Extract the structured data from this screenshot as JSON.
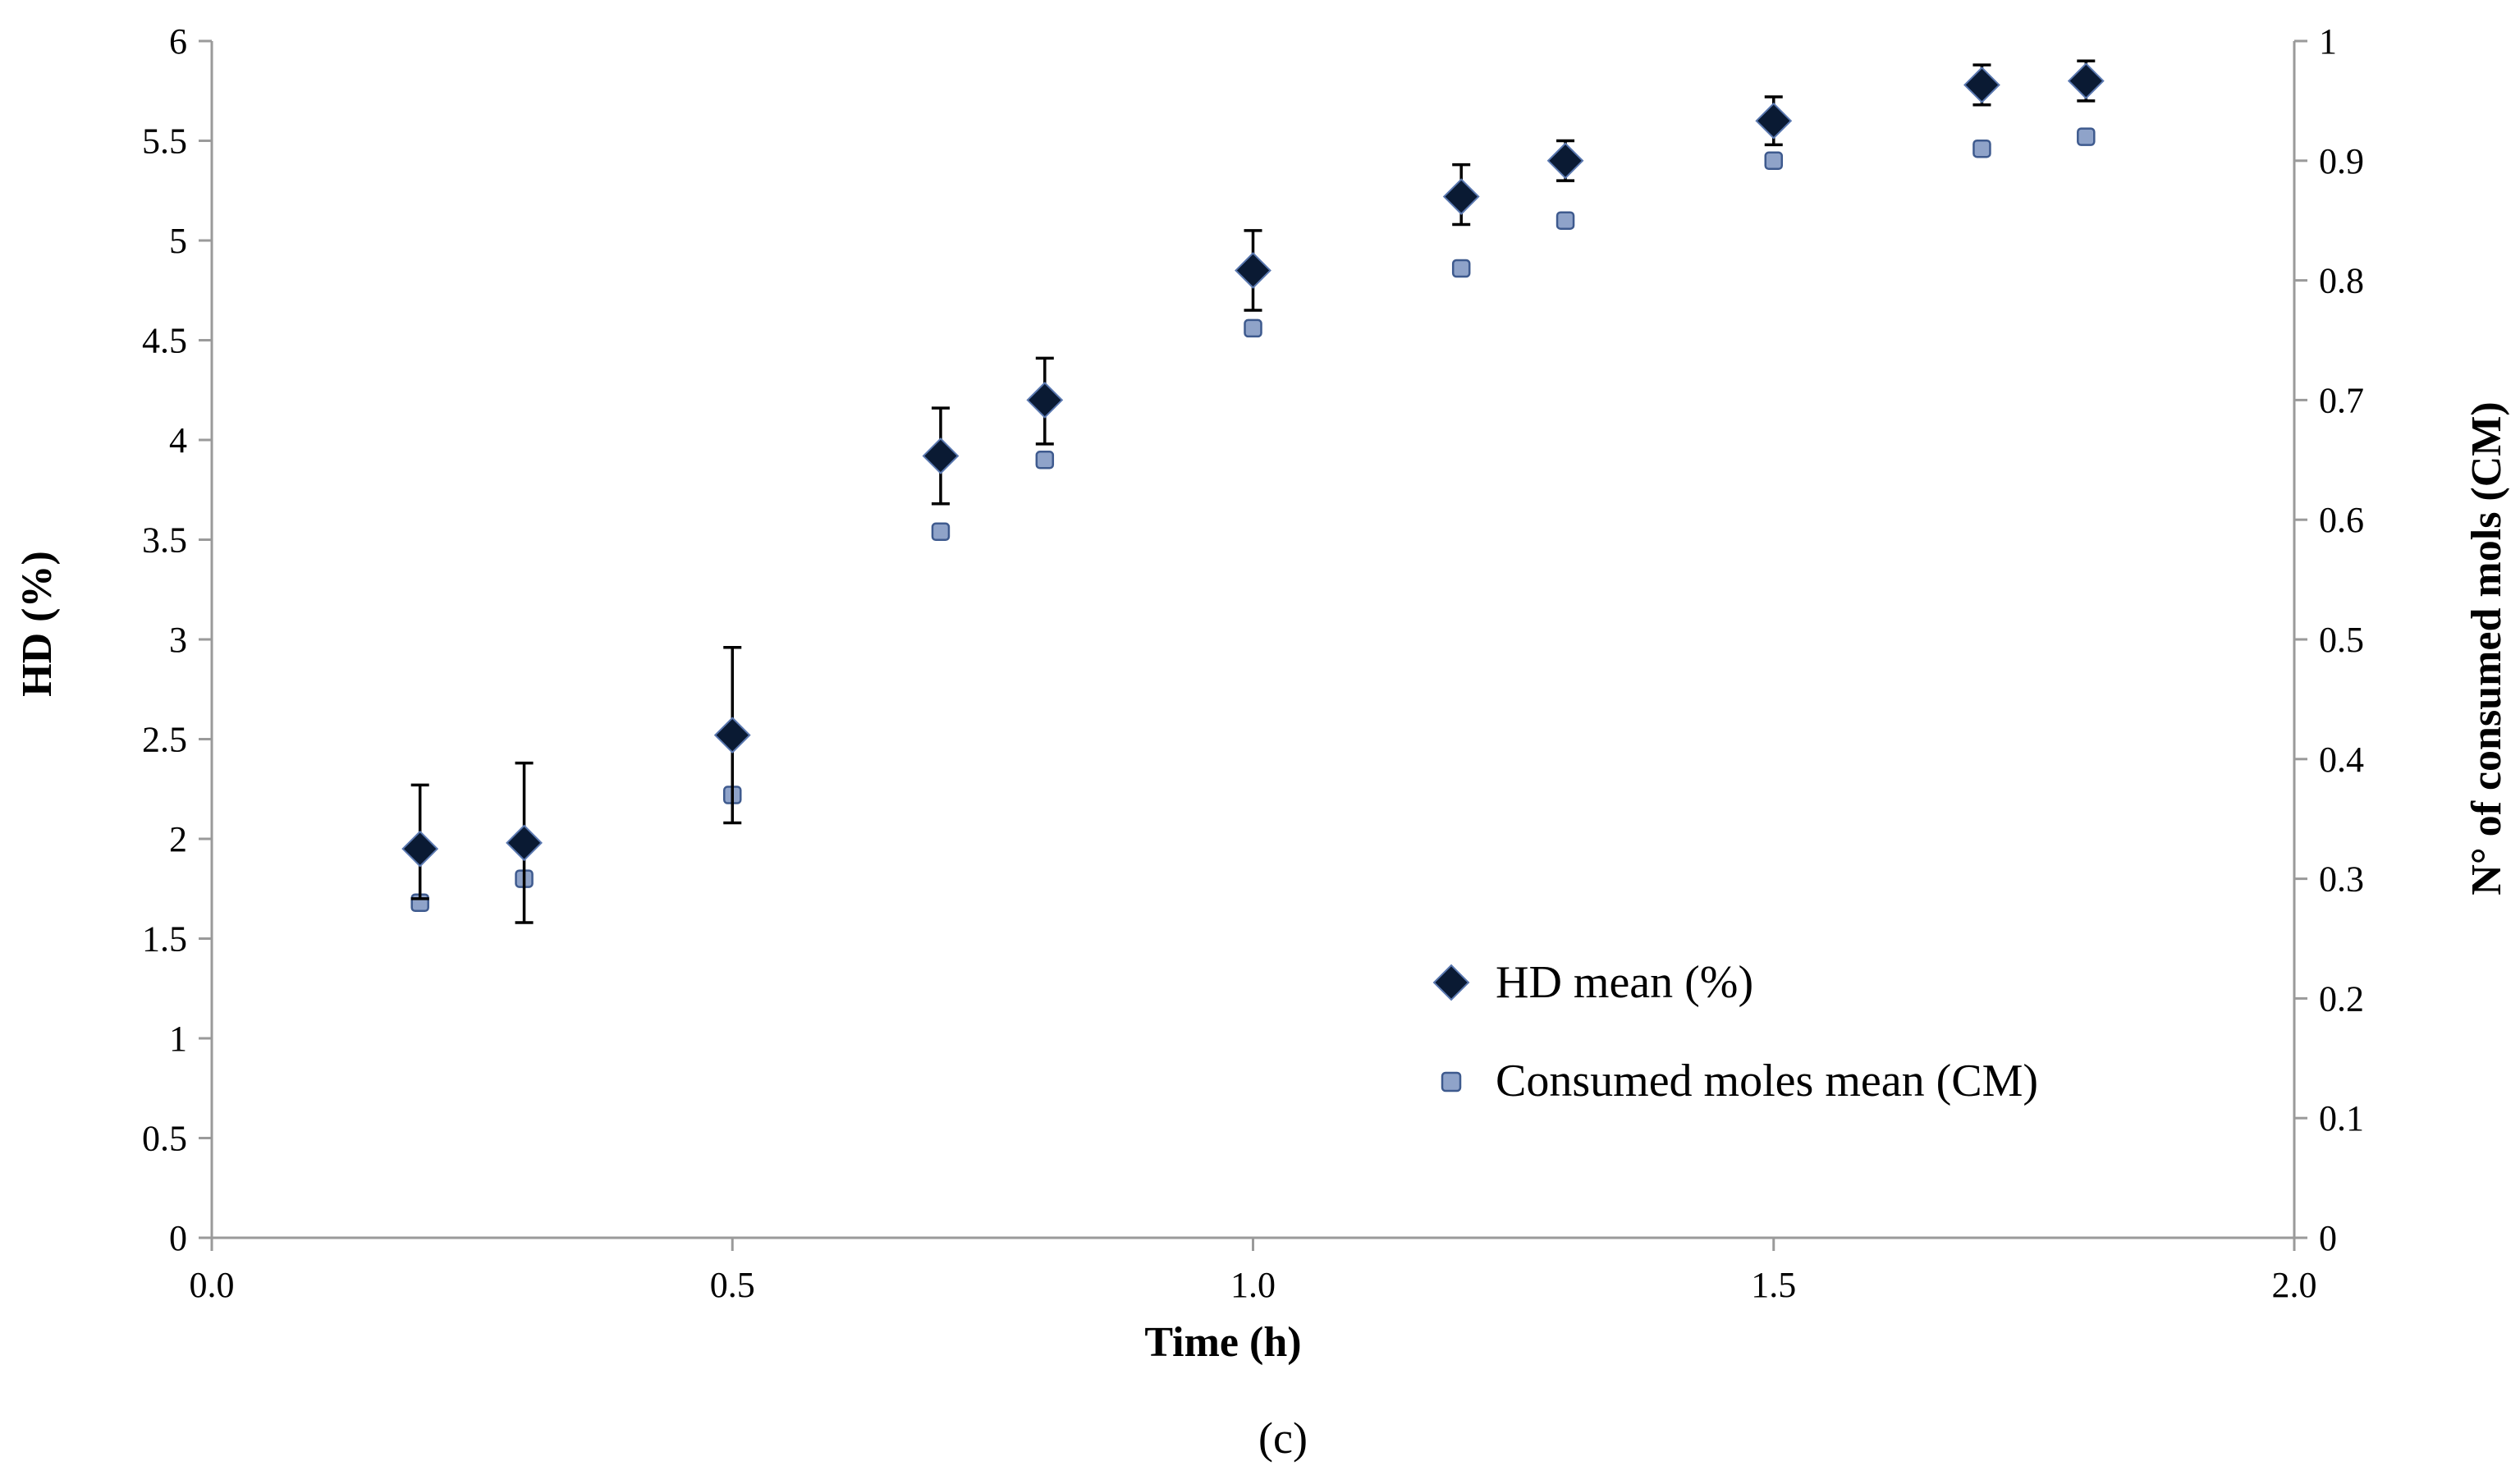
{
  "chart_data": {
    "type": "scatter",
    "title": "",
    "xlabel": "Time (h)",
    "ylabel_left": "HD (%)",
    "ylabel_right": "N° of consumed mols (CM)",
    "caption": "(c)",
    "xlim": [
      0.0,
      2.0
    ],
    "ylim_left": [
      0,
      6
    ],
    "ylim_right": [
      0,
      1
    ],
    "x_ticks": [
      "0.0",
      "0.5",
      "1.0",
      "1.5",
      "2.0"
    ],
    "y_left_ticks": [
      "0",
      "0.5",
      "1",
      "1.5",
      "2",
      "2.5",
      "3",
      "3.5",
      "4",
      "4.5",
      "5",
      "5.5",
      "6"
    ],
    "y_right_ticks": [
      "0",
      "0.1",
      "0.2",
      "0.3",
      "0.4",
      "0.5",
      "0.6",
      "0.7",
      "0.8",
      "0.9",
      "1"
    ],
    "legend_position": "bottom-right",
    "colors": {
      "hd": "#0a1a33",
      "cm_fill": "#8fa3c9",
      "cm_stroke": "#3e5a8e",
      "axis": "#9a9a9a"
    },
    "series": [
      {
        "name": "HD mean (%)",
        "axis": "left",
        "marker": "diamond",
        "x": [
          0.2,
          0.3,
          0.5,
          0.7,
          0.8,
          1.0,
          1.2,
          1.3,
          1.5,
          1.7,
          1.8
        ],
        "y": [
          1.95,
          1.98,
          2.52,
          3.92,
          4.2,
          4.85,
          5.22,
          5.4,
          5.6,
          5.78,
          5.8
        ],
        "err_low": [
          1.7,
          1.58,
          2.08,
          3.68,
          3.98,
          4.65,
          5.08,
          5.3,
          5.48,
          5.68,
          5.7
        ],
        "err_high": [
          2.27,
          2.38,
          2.96,
          4.16,
          4.41,
          5.05,
          5.38,
          5.5,
          5.72,
          5.88,
          5.9
        ]
      },
      {
        "name": "Consumed moles mean (CM)",
        "axis": "right",
        "marker": "square",
        "x": [
          0.2,
          0.3,
          0.5,
          0.7,
          0.8,
          1.0,
          1.2,
          1.3,
          1.5,
          1.7,
          1.8
        ],
        "y": [
          0.28,
          0.3,
          0.37,
          0.59,
          0.65,
          0.76,
          0.81,
          0.85,
          0.9,
          0.91,
          0.92
        ]
      }
    ]
  }
}
